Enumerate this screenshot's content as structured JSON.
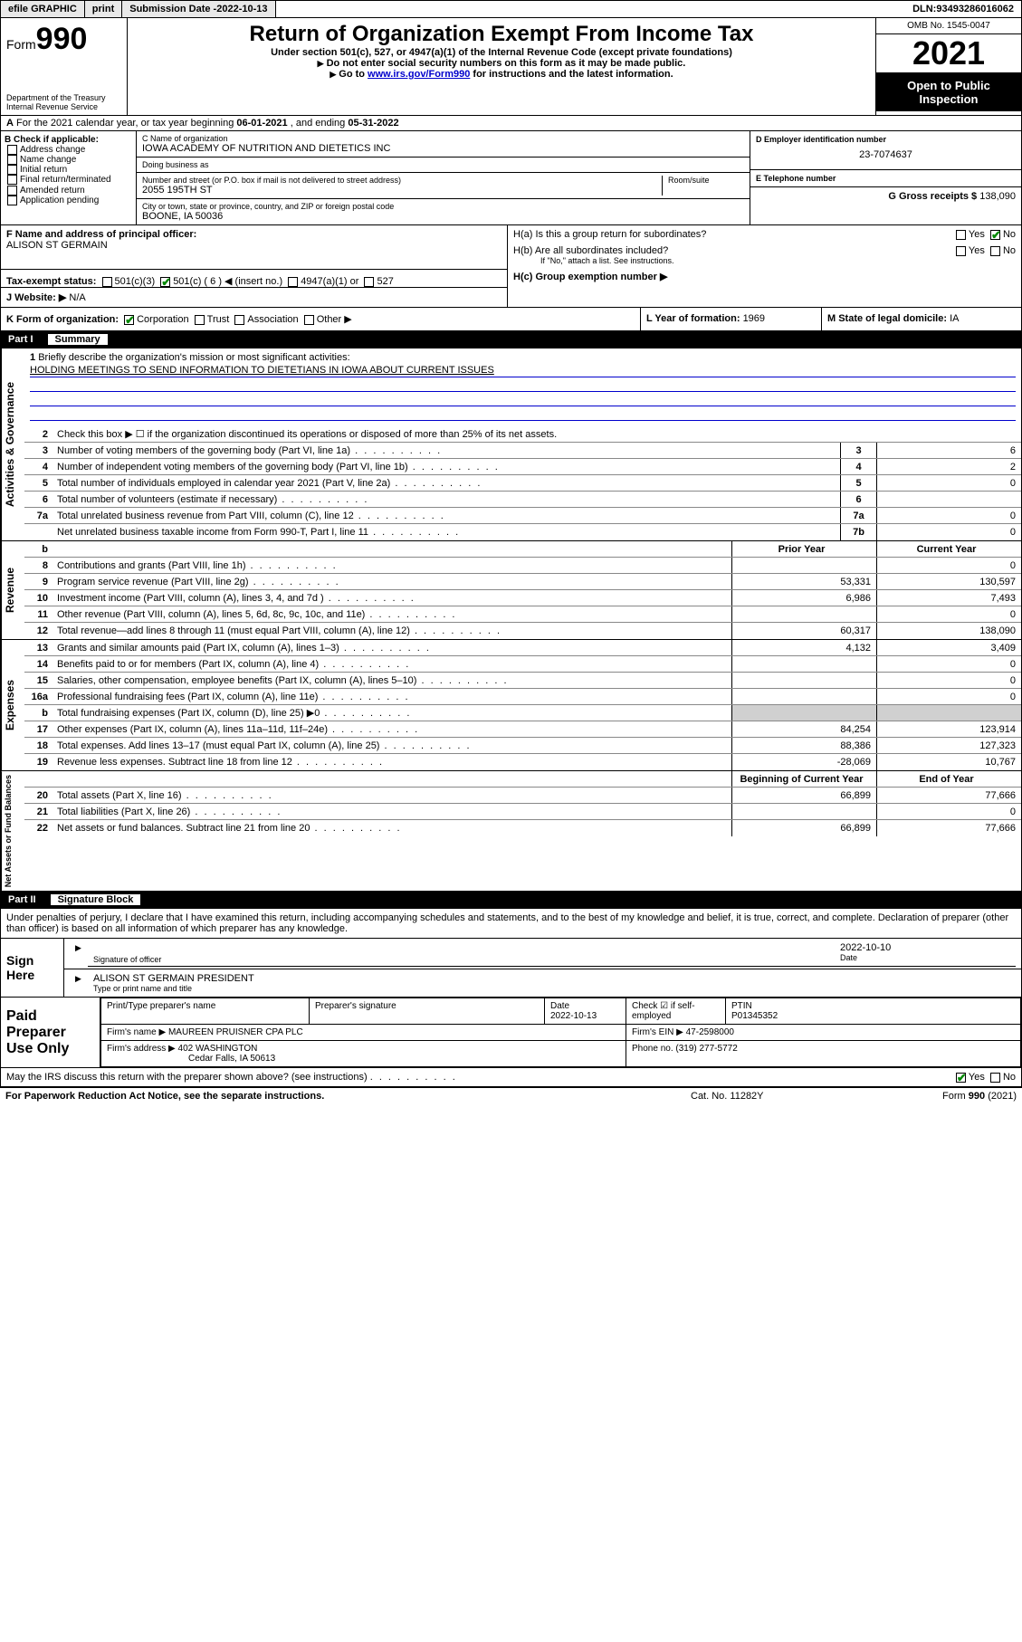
{
  "topbar": {
    "efile": "efile GRAPHIC",
    "print": "print",
    "sub_label": "Submission Date - ",
    "sub_date": "2022-10-13",
    "dln_label": "DLN: ",
    "dln": "93493286016062"
  },
  "header": {
    "form_word": "Form",
    "form_num": "990",
    "dept": "Department of the Treasury",
    "irs": "Internal Revenue Service",
    "title": "Return of Organization Exempt From Income Tax",
    "sub1": "Under section 501(c), 527, or 4947(a)(1) of the Internal Revenue Code (except private foundations)",
    "sub2": "Do not enter social security numbers on this form as it may be made public.",
    "sub3_a": "Go to ",
    "sub3_link": "www.irs.gov/Form990",
    "sub3_b": " for instructions and the latest information.",
    "omb": "OMB No. 1545-0047",
    "year": "2021",
    "open": "Open to Public Inspection"
  },
  "rowA": {
    "prefix": "A",
    "text": " For the 2021 calendar year, or tax year beginning ",
    "begin": "06-01-2021",
    "mid": " , and ending ",
    "end": "05-31-2022"
  },
  "boxB": {
    "label": "B Check if applicable:",
    "items": [
      "Address change",
      "Name change",
      "Initial return",
      "Final return/terminated",
      "Amended return",
      "Application pending"
    ]
  },
  "boxC": {
    "name_label": "C Name of organization",
    "name": "IOWA ACADEMY OF NUTRITION AND DIETETICS INC",
    "dba_label": "Doing business as",
    "dba": "",
    "street_label": "Number and street (or P.O. box if mail is not delivered to street address)",
    "room_label": "Room/suite",
    "street": "2055 195TH ST",
    "city_label": "City or town, state or province, country, and ZIP or foreign postal code",
    "city": "BOONE, IA  50036"
  },
  "boxD": {
    "label": "D Employer identification number",
    "value": "23-7074637"
  },
  "boxE": {
    "label": "E Telephone number",
    "value": ""
  },
  "boxG": {
    "label": "G Gross receipts $ ",
    "value": "138,090"
  },
  "boxF": {
    "label": "F  Name and address of principal officer:",
    "value": "ALISON ST GERMAIN"
  },
  "boxH": {
    "ha": "H(a)  Is this a group return for subordinates?",
    "hb": "H(b)  Are all subordinates included?",
    "hb_note": "If \"No,\" attach a list. See instructions.",
    "hc": "H(c)  Group exemption number ▶",
    "yes": "Yes",
    "no": "No"
  },
  "boxI": {
    "label": "Tax-exempt status:",
    "opts": [
      "501(c)(3)",
      "501(c) ( 6 ) ◀ (insert no.)",
      "4947(a)(1) or",
      "527"
    ]
  },
  "boxJ": {
    "label": "J   Website: ▶",
    "value": "N/A"
  },
  "boxK": {
    "label": "K Form of organization:",
    "opts": [
      "Corporation",
      "Trust",
      "Association",
      "Other ▶"
    ]
  },
  "boxL": {
    "label": "L Year of formation: ",
    "value": "1969"
  },
  "boxM": {
    "label": "M State of legal domicile: ",
    "value": "IA"
  },
  "part1": {
    "num": "Part I",
    "title": "Summary"
  },
  "mission": {
    "num": "1",
    "label": "Briefly describe the organization's mission or most significant activities:",
    "text": "HOLDING MEETINGS TO SEND INFORMATION TO DIETETIANS IN IOWA ABOUT CURRENT ISSUES"
  },
  "gov_lines": [
    {
      "n": "2",
      "t": "Check this box ▶ ☐  if the organization discontinued its operations or disposed of more than 25% of its net assets."
    },
    {
      "n": "3",
      "t": "Number of voting members of the governing body (Part VI, line 1a)",
      "box": "3",
      "v": "6"
    },
    {
      "n": "4",
      "t": "Number of independent voting members of the governing body (Part VI, line 1b)",
      "box": "4",
      "v": "2"
    },
    {
      "n": "5",
      "t": "Total number of individuals employed in calendar year 2021 (Part V, line 2a)",
      "box": "5",
      "v": "0"
    },
    {
      "n": "6",
      "t": "Total number of volunteers (estimate if necessary)",
      "box": "6",
      "v": ""
    },
    {
      "n": "7a",
      "t": "Total unrelated business revenue from Part VIII, column (C), line 12",
      "box": "7a",
      "v": "0"
    },
    {
      "n": "",
      "t": "Net unrelated business taxable income from Form 990-T, Part I, line 11",
      "box": "7b",
      "v": "0"
    }
  ],
  "rev_hdr": {
    "n": "b",
    "py": "Prior Year",
    "cy": "Current Year"
  },
  "rev_lines": [
    {
      "n": "8",
      "t": "Contributions and grants (Part VIII, line 1h)",
      "py": "",
      "cy": "0"
    },
    {
      "n": "9",
      "t": "Program service revenue (Part VIII, line 2g)",
      "py": "53,331",
      "cy": "130,597"
    },
    {
      "n": "10",
      "t": "Investment income (Part VIII, column (A), lines 3, 4, and 7d )",
      "py": "6,986",
      "cy": "7,493"
    },
    {
      "n": "11",
      "t": "Other revenue (Part VIII, column (A), lines 5, 6d, 8c, 9c, 10c, and 11e)",
      "py": "",
      "cy": "0"
    },
    {
      "n": "12",
      "t": "Total revenue—add lines 8 through 11 (must equal Part VIII, column (A), line 12)",
      "py": "60,317",
      "cy": "138,090"
    }
  ],
  "exp_lines": [
    {
      "n": "13",
      "t": "Grants and similar amounts paid (Part IX, column (A), lines 1–3)",
      "py": "4,132",
      "cy": "3,409"
    },
    {
      "n": "14",
      "t": "Benefits paid to or for members (Part IX, column (A), line 4)",
      "py": "",
      "cy": "0"
    },
    {
      "n": "15",
      "t": "Salaries, other compensation, employee benefits (Part IX, column (A), lines 5–10)",
      "py": "",
      "cy": "0"
    },
    {
      "n": "16a",
      "t": "Professional fundraising fees (Part IX, column (A), line 11e)",
      "py": "",
      "cy": "0"
    },
    {
      "n": "b",
      "t": "Total fundraising expenses (Part IX, column (D), line 25) ▶0",
      "py": "shade",
      "cy": "shade"
    },
    {
      "n": "17",
      "t": "Other expenses (Part IX, column (A), lines 11a–11d, 11f–24e)",
      "py": "84,254",
      "cy": "123,914"
    },
    {
      "n": "18",
      "t": "Total expenses. Add lines 13–17 (must equal Part IX, column (A), line 25)",
      "py": "88,386",
      "cy": "127,323"
    },
    {
      "n": "19",
      "t": "Revenue less expenses. Subtract line 18 from line 12",
      "py": "-28,069",
      "cy": "10,767"
    }
  ],
  "na_hdr": {
    "py": "Beginning of Current Year",
    "cy": "End of Year"
  },
  "na_lines": [
    {
      "n": "20",
      "t": "Total assets (Part X, line 16)",
      "py": "66,899",
      "cy": "77,666"
    },
    {
      "n": "21",
      "t": "Total liabilities (Part X, line 26)",
      "py": "",
      "cy": "0"
    },
    {
      "n": "22",
      "t": "Net assets or fund balances. Subtract line 21 from line 20",
      "py": "66,899",
      "cy": "77,666"
    }
  ],
  "vtabs": {
    "gov": "Activities & Governance",
    "rev": "Revenue",
    "exp": "Expenses",
    "na": "Net Assets or Fund Balances"
  },
  "part2": {
    "num": "Part II",
    "title": "Signature Block"
  },
  "penalty": "Under penalties of perjury, I declare that I have examined this return, including accompanying schedules and statements, and to the best of my knowledge and belief, it is true, correct, and complete. Declaration of preparer (other than officer) is based on all information of which preparer has any knowledge.",
  "sign": {
    "here": "Sign Here",
    "sig_label": "Signature of officer",
    "date_label": "Date",
    "date": "2022-10-10",
    "name": "ALISON ST GERMAIN  PRESIDENT",
    "name_label": "Type or print name and title"
  },
  "paid": {
    "label": "Paid Preparer Use Only",
    "h1": "Print/Type preparer's name",
    "h2": "Preparer's signature",
    "h3": "Date",
    "h3v": "2022-10-13",
    "h4": "Check ☑ if self-employed",
    "h5": "PTIN",
    "h5v": "P01345352",
    "firm_name_l": "Firm's name    ▶",
    "firm_name": "MAUREEN PRUISNER CPA PLC",
    "firm_ein_l": "Firm's EIN ▶",
    "firm_ein": "47-2598000",
    "firm_addr_l": "Firm's address ▶",
    "firm_addr1": "402 WASHINGTON",
    "firm_addr2": "Cedar Falls, IA  50613",
    "phone_l": "Phone no. ",
    "phone": "(319) 277-5772"
  },
  "discuss": "May the IRS discuss this return with the preparer shown above? (see instructions)",
  "footer": {
    "pra": "For Paperwork Reduction Act Notice, see the separate instructions.",
    "cat": "Cat. No. 11282Y",
    "form": "Form 990 (2021)"
  },
  "colors": {
    "link": "#0000cc",
    "check": "#008800",
    "shade": "#d0d0d0"
  }
}
